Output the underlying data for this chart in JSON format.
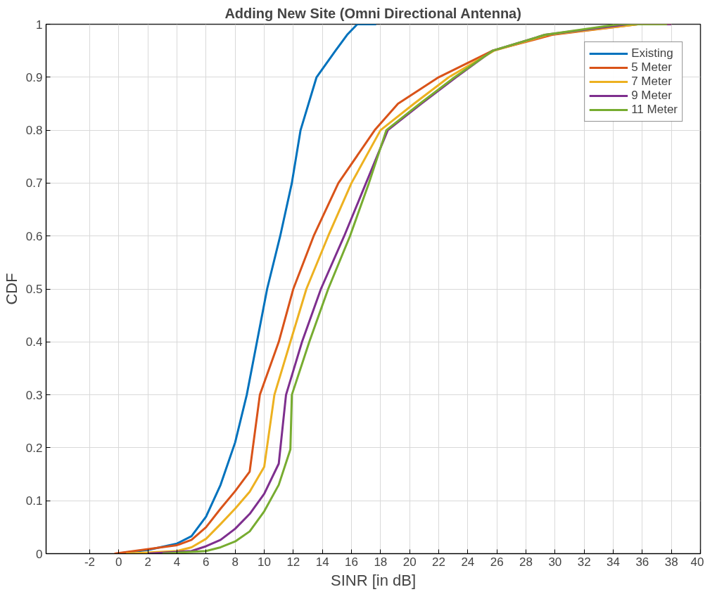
{
  "chart_data": {
    "type": "line",
    "title": "Adding New Site (Omni Directional Antenna)",
    "xlabel": "SINR [in dB]",
    "ylabel": "CDF",
    "xlim": [
      -5,
      40
    ],
    "ylim": [
      0,
      1
    ],
    "xticks": [
      -2,
      0,
      2,
      4,
      6,
      8,
      10,
      12,
      14,
      16,
      18,
      20,
      22,
      24,
      26,
      28,
      30,
      32,
      34,
      36,
      38,
      40
    ],
    "yticks": [
      0,
      0.1,
      0.2,
      0.3,
      0.4,
      0.5,
      0.6,
      0.7,
      0.8,
      0.9,
      1
    ],
    "grid": true,
    "legend": "top right",
    "marker": "none",
    "line_style": "solid",
    "series": [
      {
        "name": "Existing",
        "color": "#0072bd",
        "x": [
          -0.2,
          2,
          4,
          5,
          6,
          7,
          8,
          8.8,
          9.5,
          10.2,
          11.1,
          11.9,
          12.5,
          13.6,
          14.9,
          15.7,
          16.4,
          17.7
        ],
        "values": [
          0,
          0.007,
          0.019,
          0.033,
          0.07,
          0.13,
          0.21,
          0.3,
          0.4,
          0.5,
          0.6,
          0.7,
          0.8,
          0.9,
          0.95,
          0.98,
          1,
          1
        ]
      },
      {
        "name": "5 Meter",
        "color": "#d95319",
        "x": [
          -0.3,
          4,
          5,
          6,
          7,
          8,
          9,
          9.7,
          11,
          12,
          13.4,
          15.1,
          17.6,
          19.2,
          22,
          25.7,
          29.8,
          35.7,
          37.9
        ],
        "values": [
          0,
          0.016,
          0.026,
          0.05,
          0.085,
          0.118,
          0.155,
          0.3,
          0.4,
          0.5,
          0.6,
          0.7,
          0.8,
          0.85,
          0.9,
          0.95,
          0.98,
          1,
          1
        ]
      },
      {
        "name": "7 Meter",
        "color": "#edb120",
        "x": [
          0.5,
          4,
          5,
          6,
          7,
          8,
          9,
          10,
          10.7,
          11.8,
          12.9,
          14.4,
          16,
          18,
          20.3,
          22.7,
          25.8,
          29.5,
          35.7,
          38
        ],
        "values": [
          0,
          0.005,
          0.012,
          0.028,
          0.056,
          0.085,
          0.117,
          0.164,
          0.3,
          0.4,
          0.5,
          0.6,
          0.7,
          0.8,
          0.85,
          0.9,
          0.95,
          0.98,
          1,
          1
        ]
      },
      {
        "name": "9 Meter",
        "color": "#7e2f8e",
        "x": [
          2,
          5,
          6,
          7,
          8,
          9,
          10,
          11,
          11.5,
          12.6,
          13.9,
          15.5,
          17,
          18.5,
          20.8,
          23.2,
          25.7,
          29.3,
          35,
          38
        ],
        "values": [
          0,
          0.005,
          0.014,
          0.026,
          0.047,
          0.075,
          0.113,
          0.17,
          0.3,
          0.4,
          0.5,
          0.6,
          0.7,
          0.8,
          0.85,
          0.9,
          0.95,
          0.98,
          1,
          1
        ]
      },
      {
        "name": "11 Meter",
        "color": "#77ac30",
        "x": [
          3,
          6,
          7,
          8,
          9,
          10,
          11,
          11.8,
          11.9,
          13.1,
          14.4,
          15.9,
          17.2,
          18.4,
          20.7,
          23.1,
          25.7,
          29.3,
          34.4,
          37.7
        ],
        "values": [
          0,
          0.005,
          0.012,
          0.023,
          0.042,
          0.08,
          0.13,
          0.197,
          0.3,
          0.4,
          0.5,
          0.6,
          0.7,
          0.8,
          0.85,
          0.9,
          0.95,
          0.98,
          1,
          1
        ]
      }
    ]
  }
}
